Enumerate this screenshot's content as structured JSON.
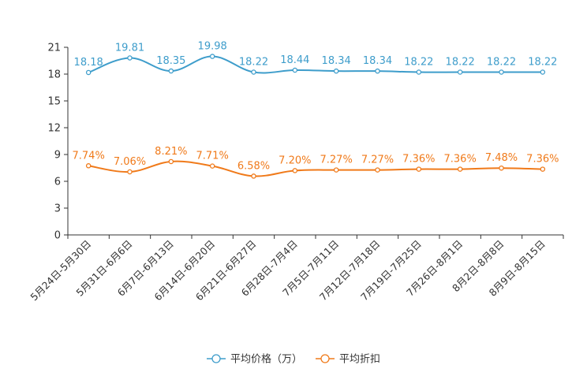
{
  "chart_data": {
    "type": "line",
    "categories": [
      "5月24日-5月30日",
      "5月31日-6月6日",
      "6月7日-6月13日",
      "6月14日-6月20日",
      "6月21日-6月27日",
      "6月28日-7月4日",
      "7月5日-7月11日",
      "7月12日-7月18日",
      "7月19日-7月25日",
      "7月26日-8月1日",
      "8月2日-8月8日",
      "8月9日-8月15日"
    ],
    "y_ticks": [
      0,
      3,
      6,
      9,
      12,
      15,
      18,
      21
    ],
    "ylim": [
      0,
      21
    ],
    "series": [
      {
        "name": "平均价格（万）",
        "color": "#3e9dcb",
        "values": [
          18.18,
          19.81,
          18.35,
          19.98,
          18.22,
          18.44,
          18.34,
          18.34,
          18.22,
          18.22,
          18.22,
          18.22
        ],
        "labels": [
          "18.18",
          "19.81",
          "18.35",
          "19.98",
          "18.22",
          "18.44",
          "18.34",
          "18.34",
          "18.22",
          "18.22",
          "18.22",
          "18.22"
        ]
      },
      {
        "name": "平均折扣",
        "color": "#f07a1a",
        "values": [
          7.74,
          7.06,
          8.21,
          7.71,
          6.58,
          7.2,
          7.27,
          7.27,
          7.36,
          7.36,
          7.48,
          7.36
        ],
        "labels": [
          "7.74%",
          "7.06%",
          "8.21%",
          "7.71%",
          "6.58%",
          "7.20%",
          "7.27%",
          "7.27%",
          "7.36%",
          "7.36%",
          "7.48%",
          "7.36%"
        ]
      }
    ],
    "legend_position": "bottom-center",
    "grid": false
  }
}
